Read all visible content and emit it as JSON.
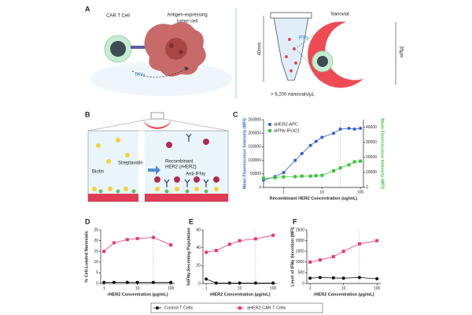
{
  "figure": {
    "panel_labels": [
      "A",
      "B",
      "C",
      "D",
      "E",
      "F"
    ],
    "panel_a": {
      "car_t_cell": "CAR T Cell",
      "tumor": [
        "Antigen-expressing",
        "tumor cell"
      ],
      "ifng": "IFNγ",
      "nanovial": "Nanovial",
      "ifng_nanovial": "IFNγ",
      "tube_height": "40mm",
      "nanovial_size": "35µm",
      "density": "> 6,200 nanovials/µL"
    },
    "panel_b": {
      "biotin": "Biotin",
      "streptavidin": "Streptavidin",
      "rher2": [
        "Recombinant",
        "HER2 (rHER2)"
      ],
      "anti_ifng": "Anti-IFNγ"
    },
    "legend": [
      {
        "name": "Control T Cells",
        "color": "#111111",
        "marker": "circle"
      },
      {
        "name": "aHER2 CAR T Cells",
        "color": "#e8367a",
        "marker": "square"
      }
    ]
  },
  "chart_data": [
    {
      "type": "line",
      "xlabel": "Recombinant HER2 Concentration (ug/mL)",
      "ylabel": "Mean Fluorescence Intensity (MFI)",
      "y2label": "Mean Fluorescence Intensity (MFI)",
      "xscale": "log",
      "xlim": [
        0.3,
        120
      ],
      "xticks": [
        1,
        10,
        100
      ],
      "ylim": [
        0,
        250000
      ],
      "yticks": [
        0,
        50000,
        100000,
        150000,
        200000,
        250000
      ],
      "y2lim": [
        0,
        45000
      ],
      "y2ticks": [
        0,
        10000,
        20000,
        30000,
        40000
      ],
      "vline": 30,
      "legend": "upper left",
      "x": [
        0.3,
        0.6,
        1,
        2,
        3,
        5,
        7,
        10,
        20,
        30,
        50,
        70,
        100
      ],
      "series": [
        {
          "name": "aHER2-APC",
          "color": "#2f5fd0",
          "marker": "circle",
          "values": [
            27000,
            40000,
            55000,
            100000,
            125000,
            155000,
            170000,
            185000,
            200000,
            215000,
            218000,
            215000,
            218000
          ]
        },
        {
          "name": "aIFNγ-BV421",
          "color": "#3cc43c",
          "marker": "square",
          "axis": "y2",
          "values": [
            6000,
            6500,
            7000,
            7200,
            7500,
            7500,
            7800,
            8000,
            11000,
            13000,
            15000,
            17000,
            17500
          ]
        }
      ]
    },
    {
      "type": "line",
      "xlabel": "rHER2 Concentration (µg/mL)",
      "ylabel": "% Cell-Loaded Nanovials",
      "xscale": "log",
      "xlim": [
        0.8,
        130
      ],
      "xticks": [
        1,
        10,
        100
      ],
      "ylim": [
        0,
        25
      ],
      "yticks": [
        0,
        5,
        10,
        15,
        20,
        25
      ],
      "vline": 30,
      "x": [
        1,
        2,
        5,
        10,
        30,
        100
      ],
      "series": [
        {
          "color": "#111111",
          "marker": "circle",
          "values": [
            0.5,
            0.5,
            0.5,
            0.5,
            0.5,
            0.5
          ]
        },
        {
          "color": "#e8367a",
          "marker": "square",
          "values": [
            15,
            19,
            20.5,
            21,
            21.5,
            18
          ]
        }
      ]
    },
    {
      "type": "line",
      "xlabel": "rHER2 Concentration (µg/mL)",
      "ylabel": "%IFNγ-Secreting Population",
      "xscale": "log",
      "xlim": [
        0.8,
        130
      ],
      "xticks": [
        1,
        10,
        100
      ],
      "ylim": [
        0,
        60
      ],
      "yticks": [
        0,
        20,
        40,
        60
      ],
      "vline": 30,
      "x": [
        1,
        2,
        5,
        10,
        30,
        100
      ],
      "series": [
        {
          "color": "#111111",
          "marker": "circle",
          "values": [
            5,
            0.5,
            0.5,
            0.5,
            0.5,
            0.5
          ]
        },
        {
          "color": "#e8367a",
          "marker": "square",
          "values": [
            35,
            37,
            44,
            48,
            50,
            54
          ]
        }
      ]
    },
    {
      "type": "line",
      "xlabel": "rHER2 Concentration (µg/mL)",
      "ylabel": "Level of IFNγ Secretion (MFI)",
      "xscale": "log",
      "xlim": [
        0.8,
        130
      ],
      "xticks": [
        1,
        10,
        100
      ],
      "ylim": [
        0,
        2500
      ],
      "yticks": [
        0,
        500,
        1000,
        1500,
        2000,
        2500
      ],
      "vline": 30,
      "x": [
        1,
        2,
        5,
        10,
        30,
        100
      ],
      "series": [
        {
          "color": "#111111",
          "marker": "circle",
          "values": [
            250,
            280,
            260,
            250,
            280,
            220
          ]
        },
        {
          "color": "#e8367a",
          "marker": "square",
          "values": [
            1000,
            1100,
            1250,
            1500,
            1850,
            2000
          ]
        }
      ]
    }
  ]
}
